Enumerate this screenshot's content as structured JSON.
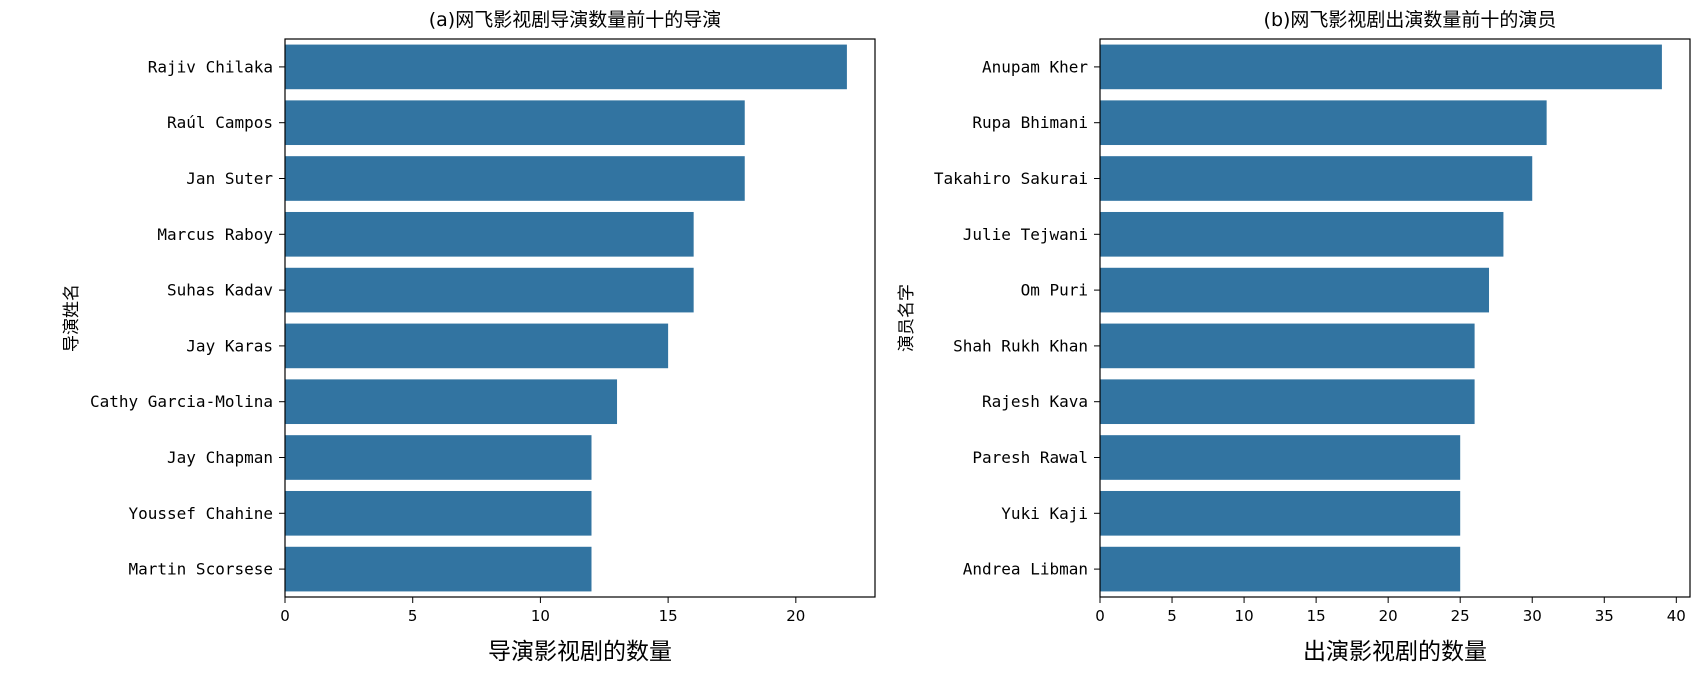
{
  "colors": {
    "bar": "#3274a1",
    "axis": "#000000",
    "background": "#ffffff"
  },
  "chart_data": [
    {
      "type": "bar",
      "orientation": "horizontal",
      "title": "(a)网飞影视剧导演数量前十的导演",
      "xlabel": "导演影视剧的数量",
      "ylabel": "导演姓名",
      "categories": [
        "Rajiv Chilaka",
        "Raúl Campos",
        "Jan Suter",
        "Marcus Raboy",
        "Suhas Kadav",
        "Jay Karas",
        "Cathy Garcia-Molina",
        "Jay Chapman",
        "Youssef Chahine",
        "Martin Scorsese"
      ],
      "values": [
        22,
        18,
        18,
        16,
        16,
        15,
        13,
        12,
        12,
        12
      ],
      "xlim": [
        0,
        23.1
      ],
      "xticks": [
        0,
        5,
        10,
        15,
        20
      ],
      "grid": false,
      "legend": "none"
    },
    {
      "type": "bar",
      "orientation": "horizontal",
      "title": "(b)网飞影视剧出演数量前十的演员",
      "xlabel": "出演影视剧的数量",
      "ylabel": "演员名字",
      "categories": [
        "Anupam Kher",
        "Rupa Bhimani",
        "Takahiro Sakurai",
        "Julie Tejwani",
        "Om Puri",
        "Shah Rukh Khan",
        "Rajesh Kava",
        "Paresh Rawal",
        "Yuki Kaji",
        "Andrea Libman"
      ],
      "values": [
        39,
        31,
        30,
        28,
        27,
        26,
        26,
        25,
        25,
        25
      ],
      "xlim": [
        0,
        40.95
      ],
      "xticks": [
        0,
        5,
        10,
        15,
        20,
        25,
        30,
        35,
        40
      ],
      "grid": false,
      "legend": "none"
    }
  ]
}
